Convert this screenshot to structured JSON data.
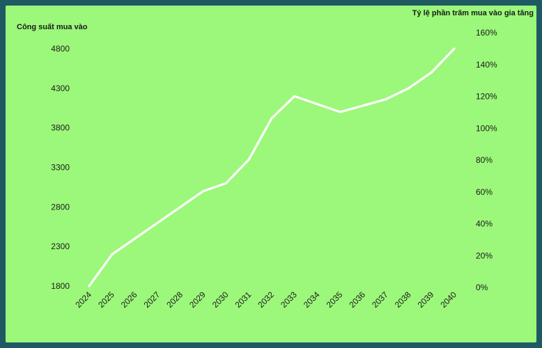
{
  "chart_data": {
    "type": "line",
    "title": "",
    "ylabel": "Công suất mua vào",
    "y2label": "Tỷ lệ phần trăm mua vào gia tăng",
    "categories": [
      "2024",
      "2025",
      "2026",
      "2027",
      "2028",
      "2029",
      "2030",
      "2031",
      "2032",
      "2033",
      "2034",
      "2035",
      "2036",
      "2037",
      "2038",
      "2039",
      "2040"
    ],
    "series": [
      {
        "values": [
          1800,
          2200,
          2400,
          2600,
          2800,
          3000,
          3100,
          3400,
          3920,
          4200,
          4100,
          4000,
          4080,
          4160,
          4300,
          4500,
          4800
        ]
      }
    ],
    "ylim": [
      1800,
      4800
    ],
    "yticks": [
      "1800",
      "2300",
      "2800",
      "3300",
      "3800",
      "4300",
      "4800"
    ],
    "y2ticks": [
      "0%",
      "20%",
      "40%",
      "60%",
      "80%",
      "100%",
      "120%",
      "140%",
      "160%"
    ],
    "grid": false,
    "colors": {
      "background": "#9cf87a",
      "frame": "#1f5a63",
      "line": "#ffffff",
      "text": "#1a1a1a"
    }
  }
}
